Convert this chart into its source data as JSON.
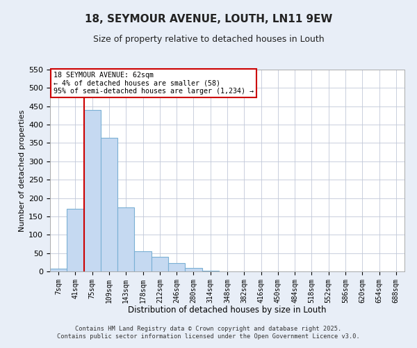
{
  "title": "18, SEYMOUR AVENUE, LOUTH, LN11 9EW",
  "subtitle": "Size of property relative to detached houses in Louth",
  "xlabel": "Distribution of detached houses by size in Louth",
  "ylabel": "Number of detached properties",
  "bar_labels": [
    "7sqm",
    "41sqm",
    "75sqm",
    "109sqm",
    "143sqm",
    "178sqm",
    "212sqm",
    "246sqm",
    "280sqm",
    "314sqm",
    "348sqm",
    "382sqm",
    "416sqm",
    "450sqm",
    "484sqm",
    "518sqm",
    "552sqm",
    "586sqm",
    "620sqm",
    "654sqm",
    "688sqm"
  ],
  "bar_values": [
    8,
    170,
    440,
    365,
    175,
    55,
    40,
    22,
    10,
    2,
    0,
    0,
    0,
    0,
    0,
    0,
    0,
    0,
    0,
    0,
    0
  ],
  "bar_color": "#c5d9f1",
  "bar_edge_color": "#7ab0d4",
  "vline_color": "#cc0000",
  "vline_x_index": 1.5,
  "ylim": [
    0,
    550
  ],
  "yticks": [
    0,
    50,
    100,
    150,
    200,
    250,
    300,
    350,
    400,
    450,
    500,
    550
  ],
  "annotation_text": "18 SEYMOUR AVENUE: 62sqm\n← 4% of detached houses are smaller (58)\n95% of semi-detached houses are larger (1,234) →",
  "annotation_box_color": "#ffffff",
  "annotation_box_edge": "#cc0000",
  "footer_line1": "Contains HM Land Registry data © Crown copyright and database right 2025.",
  "footer_line2": "Contains public sector information licensed under the Open Government Licence v3.0.",
  "bg_color": "#e8eef7",
  "plot_bg_color": "#ffffff",
  "grid_color": "#c0c8d8"
}
